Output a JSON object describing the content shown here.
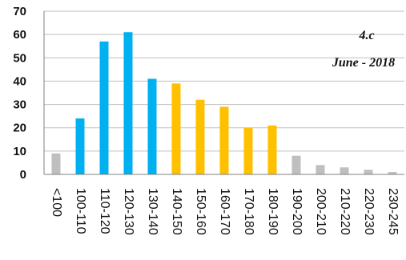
{
  "chart_data": {
    "type": "bar",
    "title": "",
    "xlabel": "",
    "ylabel": "",
    "annotation_line1": "4.c",
    "annotation_line2": "June - 2018",
    "categories": [
      "<100",
      "100-110",
      "110-120",
      "120-130",
      "130-140",
      "140-150",
      "150-160",
      "160-170",
      "170-180",
      "180-190",
      "190-200",
      "200-210",
      "210-220",
      "220-230",
      "230-245"
    ],
    "values": [
      9,
      24,
      57,
      61,
      41,
      39,
      32,
      29,
      20,
      21,
      8,
      4,
      3,
      2,
      1
    ],
    "bar_colors": [
      "#bfbfbf",
      "#00b0f0",
      "#00b0f0",
      "#00b0f0",
      "#00b0f0",
      "#ffc000",
      "#ffc000",
      "#ffc000",
      "#ffc000",
      "#ffc000",
      "#bfbfbf",
      "#bfbfbf",
      "#bfbfbf",
      "#bfbfbf",
      "#bfbfbf"
    ],
    "yticks": [
      "0",
      "10",
      "20",
      "30",
      "40",
      "50",
      "60",
      "70"
    ],
    "ylim": [
      0,
      70
    ],
    "grid": true,
    "colors": {
      "gray": "#bfbfbf",
      "blue": "#00b0f0",
      "orange": "#ffc000",
      "grid": "#bfbfbf",
      "axis": "#808080"
    }
  }
}
